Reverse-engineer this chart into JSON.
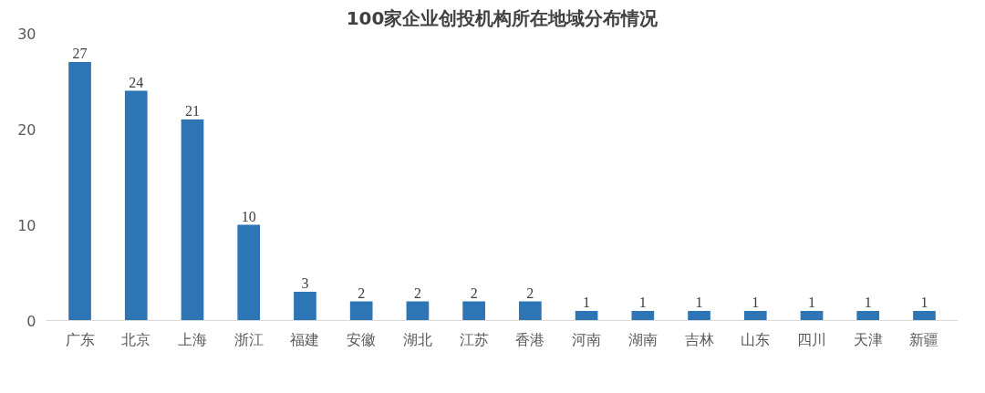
{
  "chart_data": {
    "type": "bar",
    "title": "100家企业创投机构所在地域分布情况",
    "categories": [
      "广东",
      "北京",
      "上海",
      "浙江",
      "福建",
      "安徽",
      "湖北",
      "江苏",
      "香港",
      "河南",
      "湖南",
      "吉林",
      "山东",
      "四川",
      "天津",
      "新疆"
    ],
    "values": [
      27,
      24,
      21,
      10,
      3,
      2,
      2,
      2,
      2,
      1,
      1,
      1,
      1,
      1,
      1,
      1
    ],
    "color": "#2e75b6",
    "ylim": [
      0,
      30
    ],
    "yticks": [
      0,
      10,
      20,
      30
    ],
    "grid": false,
    "data_labels": true
  }
}
